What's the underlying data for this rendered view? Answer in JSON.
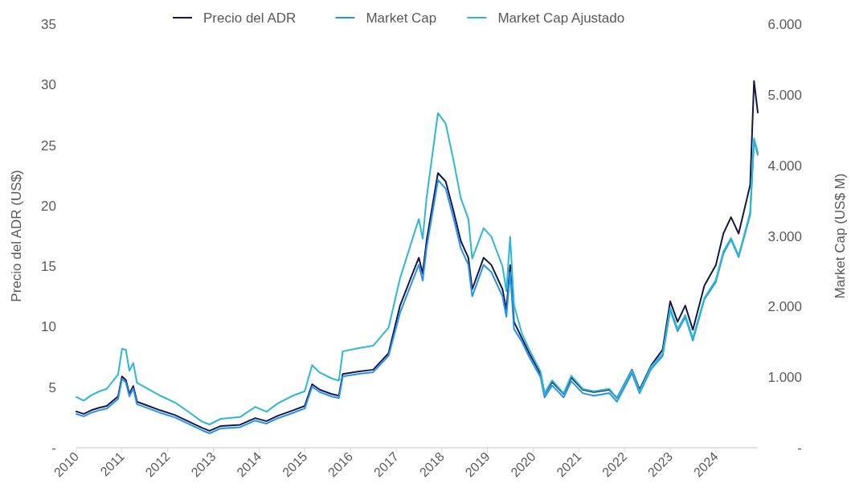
{
  "chart_data": {
    "type": "line",
    "ylabel": "Precio del ADR (US$)",
    "y2label": "Market Cap (US$ M)",
    "legend": "top",
    "grid": false,
    "x": [
      "2010-01",
      "2010-03",
      "2010-05",
      "2010-07",
      "2010-09",
      "2010-12",
      "2011-01",
      "2011-02",
      "2011-03",
      "2011-04",
      "2011-05",
      "2011-08",
      "2011-11",
      "2012-03",
      "2012-07",
      "2012-10",
      "2012-12",
      "2013-03",
      "2013-08",
      "2013-12",
      "2014-03",
      "2014-06",
      "2014-10",
      "2015-01",
      "2015-03",
      "2015-05",
      "2015-08",
      "2015-10",
      "2015-11",
      "2016-03",
      "2016-07",
      "2016-11",
      "2017-02",
      "2017-05",
      "2017-07",
      "2017-08",
      "2017-09",
      "2017-12",
      "2018-02",
      "2018-04",
      "2018-06",
      "2018-08",
      "2018-09",
      "2018-12",
      "2019-02",
      "2019-05",
      "2019-06",
      "2019-07",
      "2019-08",
      "2019-10",
      "2019-12",
      "2020-03",
      "2020-04",
      "2020-06",
      "2020-09",
      "2020-11",
      "2021-02",
      "2021-05",
      "2021-09",
      "2021-11",
      "2022-03",
      "2022-05",
      "2022-08",
      "2022-11",
      "2023-01",
      "2023-03",
      "2023-05",
      "2023-07",
      "2023-10",
      "2024-01",
      "2024-03",
      "2024-05",
      "2024-07",
      "2024-10",
      "2024-11",
      "2024-12"
    ],
    "xlim": [
      "2010-01",
      "2024-12"
    ],
    "xticks": [
      {
        "value": "2010-01",
        "label": "2010"
      },
      {
        "value": "2011-01",
        "label": "2011"
      },
      {
        "value": "2012-01",
        "label": "2012"
      },
      {
        "value": "2013-01",
        "label": "2013"
      },
      {
        "value": "2014-01",
        "label": "2014"
      },
      {
        "value": "2015-01",
        "label": "2015"
      },
      {
        "value": "2016-01",
        "label": "2016"
      },
      {
        "value": "2017-01",
        "label": "2017"
      },
      {
        "value": "2018-01",
        "label": "2018"
      },
      {
        "value": "2019-01",
        "label": "2019"
      },
      {
        "value": "2020-01",
        "label": "2020"
      },
      {
        "value": "2021-01",
        "label": "2021"
      },
      {
        "value": "2022-01",
        "label": "2022"
      },
      {
        "value": "2023-01",
        "label": "2023"
      },
      {
        "value": "2024-01",
        "label": "2024"
      }
    ],
    "ylim": [
      0,
      35
    ],
    "yticks": [
      {
        "value": 0,
        "label": "-"
      },
      5,
      10,
      15,
      20,
      25,
      30,
      35
    ],
    "y2lim": [
      0,
      6000
    ],
    "y2ticks": [
      {
        "value": 0,
        "label": "-"
      },
      {
        "value": 1000,
        "label": "1.000"
      },
      {
        "value": 2000,
        "label": "2.000"
      },
      {
        "value": 3000,
        "label": "3.000"
      },
      {
        "value": 4000,
        "label": "4.000"
      },
      {
        "value": 5000,
        "label": "5.000"
      },
      {
        "value": 6000,
        "label": "6.000"
      }
    ],
    "series": [
      {
        "name": "Precio del ADR",
        "color": "#14184a",
        "values": [
          3.0,
          2.8,
          3.1,
          3.3,
          3.45,
          4.25,
          5.9,
          5.6,
          4.45,
          5.1,
          3.8,
          3.45,
          3.1,
          2.7,
          2.1,
          1.65,
          1.4,
          1.8,
          1.9,
          2.45,
          2.2,
          2.65,
          3.1,
          3.45,
          5.25,
          4.8,
          4.45,
          4.3,
          6.1,
          6.3,
          6.45,
          7.8,
          11.75,
          14.1,
          15.7,
          14.4,
          17.1,
          22.7,
          22.0,
          19.7,
          17.1,
          15.7,
          13.1,
          15.7,
          15.1,
          13.1,
          11.4,
          15.1,
          10.4,
          9.1,
          7.8,
          6.1,
          4.45,
          5.45,
          4.45,
          5.8,
          4.8,
          4.6,
          4.8,
          4.1,
          6.45,
          4.8,
          6.8,
          8.1,
          12.1,
          10.4,
          11.75,
          9.75,
          13.4,
          15.1,
          17.7,
          19.05,
          17.7,
          21.7,
          30.3,
          27.7
        ]
      },
      {
        "name": "Market Cap",
        "color": "#2491f7",
        "axis": "y2",
        "values": [
          479,
          445,
          496,
          531,
          556,
          693,
          976,
          925,
          728,
          839,
          616,
          556,
          496,
          428,
          325,
          248,
          205,
          274,
          291,
          385,
          342,
          419,
          496,
          556,
          865,
          788,
          728,
          702,
          1011,
          1045,
          1071,
          1302,
          1914,
          2317,
          2591,
          2368,
          2831,
          3791,
          3671,
          3277,
          2831,
          2591,
          2145,
          2591,
          2488,
          2145,
          1854,
          2488,
          1683,
          1510,
          1287,
          996,
          713,
          884,
          713,
          944,
          773,
          738,
          773,
          653,
          1056,
          773,
          1116,
          1300,
          1950,
          1650,
          1850,
          1520,
          2100,
          2350,
          2750,
          2950,
          2700,
          3300,
          4350,
          4150
        ]
      },
      {
        "name": "Market Cap Ajustado",
        "color": "#2bb8d4",
        "axis": "y2",
        "values": [
          719,
          668,
          744,
          797,
          834,
          1040,
          1400,
          1390,
          1090,
          1200,
          920,
          830,
          740,
          640,
          490,
          372,
          330,
          410,
          435,
          578,
          510,
          630,
          740,
          800,
          1170,
          1065,
          985,
          950,
          1365,
          1410,
          1445,
          1700,
          2400,
          2900,
          3240,
          2960,
          3540,
          4740,
          4590,
          4100,
          3540,
          3240,
          2680,
          3110,
          2990,
          2570,
          2220,
          2990,
          2020,
          1630,
          1390,
          1075,
          770,
          955,
          770,
          1020,
          835,
          800,
          835,
          700,
          1100,
          800,
          1150,
          1330,
          1980,
          1680,
          1880,
          1550,
          2120,
          2380,
          2780,
          2970,
          2720,
          3330,
          4380,
          4180
        ]
      }
    ]
  }
}
